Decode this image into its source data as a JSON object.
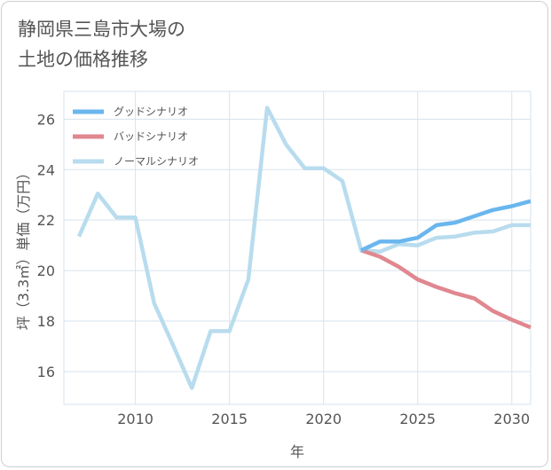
{
  "title_line1": "静岡県三島市大場の",
  "title_line2": "土地の価格推移",
  "chart_data": {
    "type": "line",
    "title": "静岡県三島市大場の土地の価格推移",
    "xlabel": "年",
    "ylabel": "坪（3.3㎡）単価（万円）",
    "xlim": [
      2006.2,
      2031
    ],
    "ylim": [
      14.7,
      27.1
    ],
    "x_ticks": [
      2010,
      2015,
      2020,
      2025,
      2030
    ],
    "y_ticks": [
      16,
      18,
      20,
      22,
      24,
      26
    ],
    "grid": true,
    "legend_position": "top-left",
    "series": [
      {
        "name": "グッドシナリオ",
        "color": "#6ab6ee",
        "x": [
          2022,
          2023,
          2024,
          2025,
          2026,
          2027,
          2028,
          2029,
          2030,
          2031
        ],
        "y": [
          20.8,
          21.15,
          21.15,
          21.3,
          21.8,
          21.9,
          22.15,
          22.4,
          22.55,
          22.75
        ]
      },
      {
        "name": "バッドシナリオ",
        "color": "#e0878f",
        "x": [
          2022,
          2023,
          2024,
          2025,
          2026,
          2027,
          2028,
          2029,
          2030,
          2031
        ],
        "y": [
          20.8,
          20.55,
          20.15,
          19.65,
          19.35,
          19.1,
          18.9,
          18.4,
          18.05,
          17.75
        ]
      },
      {
        "name": "ノーマルシナリオ",
        "color": "#b8dcee",
        "x": [
          2007,
          2008,
          2009,
          2010,
          2011,
          2012,
          2013,
          2014,
          2015,
          2016,
          2017,
          2018,
          2019,
          2020,
          2021,
          2022,
          2023,
          2024,
          2025,
          2026,
          2027,
          2028,
          2029,
          2030,
          2031
        ],
        "y": [
          21.35,
          23.05,
          22.1,
          22.1,
          18.7,
          17.05,
          15.35,
          17.6,
          17.6,
          19.65,
          26.45,
          25.0,
          24.05,
          24.05,
          23.55,
          20.8,
          20.75,
          21.05,
          21.0,
          21.3,
          21.35,
          21.5,
          21.55,
          21.8,
          21.8
        ]
      }
    ]
  }
}
